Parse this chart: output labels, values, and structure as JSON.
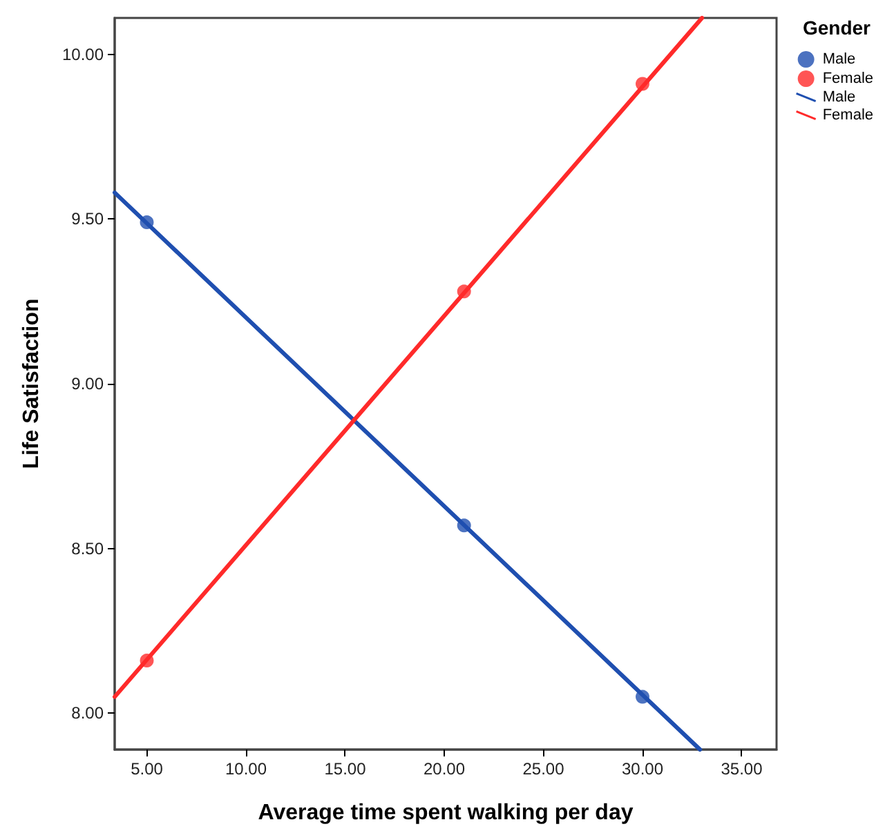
{
  "chart_data": {
    "type": "scatter",
    "xlabel": "Average time spent walking per day",
    "ylabel": "Life Satisfaction",
    "legend_title": "Gender",
    "legend": "top right",
    "grid": false,
    "xlim": [
      3.38,
      36.76
    ],
    "ylim": [
      7.89,
      10.11
    ],
    "xticks": [
      {
        "value": 5,
        "label": "5.00"
      },
      {
        "value": 10,
        "label": "10.00"
      },
      {
        "value": 15,
        "label": "15.00"
      },
      {
        "value": 20,
        "label": "20.00"
      },
      {
        "value": 25,
        "label": "25.00"
      },
      {
        "value": 30,
        "label": "30.00"
      },
      {
        "value": 35,
        "label": "35.00"
      }
    ],
    "yticks": [
      {
        "value": 8,
        "label": "8.00"
      },
      {
        "value": 8.5,
        "label": "8.50"
      },
      {
        "value": 9,
        "label": "9.00"
      },
      {
        "value": 9.5,
        "label": "9.50"
      },
      {
        "value": 10,
        "label": "10.00"
      }
    ],
    "series": [
      {
        "name": "Male",
        "marker": "circle",
        "color": "#1f4fb0",
        "x": [
          5,
          21,
          30
        ],
        "values": [
          9.49,
          8.57,
          8.05
        ]
      },
      {
        "name": "Female",
        "marker": "circle",
        "color": "#ff2a2a",
        "x": [
          5,
          21,
          30
        ],
        "values": [
          8.16,
          9.28,
          9.91
        ]
      },
      {
        "name": "Male",
        "type": "line",
        "marker": "none",
        "line_style": "solid",
        "color": "#1f4fb0",
        "x": [
          3.38,
          32.9
        ],
        "values": [
          9.58,
          7.89
        ]
      },
      {
        "name": "Female",
        "type": "line",
        "marker": "none",
        "line_style": "solid",
        "color": "#ff2a2a",
        "x": [
          3.38,
          33.0
        ],
        "values": [
          8.05,
          10.11
        ]
      }
    ]
  }
}
